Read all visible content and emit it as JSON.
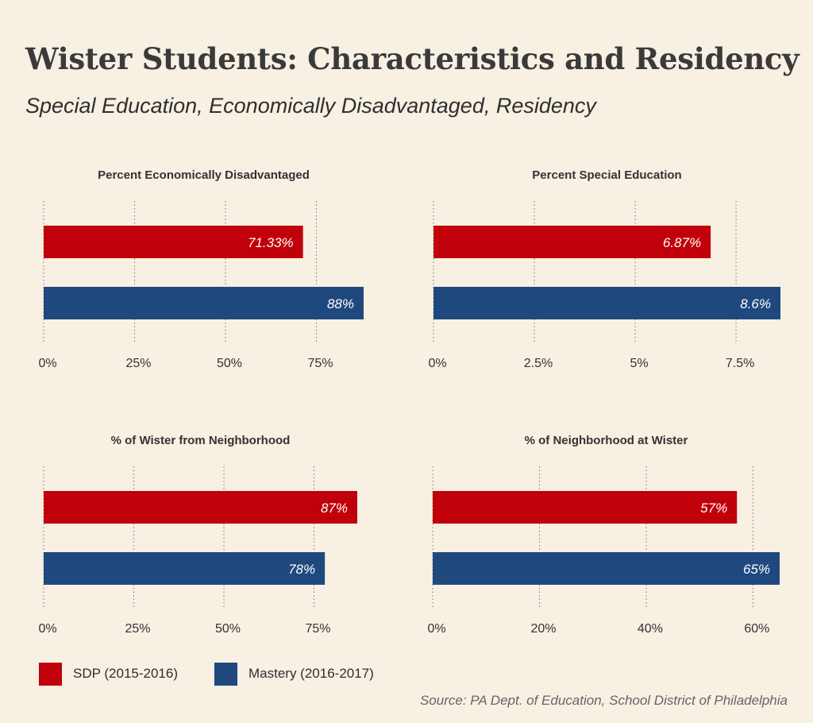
{
  "title": "Wister Students: Characteristics and Residency",
  "subtitle": "Special Education, Economically Disadvantaged, Residency",
  "source": "Source: PA Dept. of Education, School District of Philadelphia",
  "colors": {
    "sdp": "#c0000a",
    "mastery": "#1f487e",
    "background": "#f7f0e3"
  },
  "legend": [
    {
      "label": "SDP (2015-2016)",
      "color": "#c0000a"
    },
    {
      "label": "Mastery (2016-2017)",
      "color": "#1f487e"
    }
  ],
  "chart_data": [
    {
      "type": "bar",
      "orientation": "horizontal",
      "title": "Percent Economically Disadvantaged",
      "categories": [
        "SDP (2015-2016)",
        "Mastery (2016-2017)"
      ],
      "values": [
        71.33,
        88
      ],
      "value_labels": [
        "71.33%",
        "88%"
      ],
      "xlim": [
        0,
        88
      ],
      "ticks": [
        0,
        25,
        50,
        75
      ],
      "tick_labels": [
        "0%",
        "25%",
        "50%",
        "75%"
      ],
      "grid": true
    },
    {
      "type": "bar",
      "orientation": "horizontal",
      "title": "Percent Special Education",
      "categories": [
        "SDP (2015-2016)",
        "Mastery (2016-2017)"
      ],
      "values": [
        6.87,
        8.6
      ],
      "value_labels": [
        "6.87%",
        "8.6%"
      ],
      "xlim": [
        0,
        8.6
      ],
      "ticks": [
        0,
        2.5,
        5,
        7.5
      ],
      "tick_labels": [
        "0%",
        "2.5%",
        "5%",
        "7.5%"
      ],
      "grid": true
    },
    {
      "type": "bar",
      "orientation": "horizontal",
      "title": "% of Wister from Neighborhood",
      "categories": [
        "SDP (2015-2016)",
        "Mastery (2016-2017)"
      ],
      "values": [
        87,
        78
      ],
      "value_labels": [
        "87%",
        "78%"
      ],
      "xlim": [
        0,
        87
      ],
      "ticks": [
        0,
        25,
        50,
        75
      ],
      "tick_labels": [
        "0%",
        "25%",
        "50%",
        "75%"
      ],
      "grid": true
    },
    {
      "type": "bar",
      "orientation": "horizontal",
      "title": "% of Neighborhood at Wister",
      "categories": [
        "SDP (2015-2016)",
        "Mastery (2016-2017)"
      ],
      "values": [
        57,
        65
      ],
      "value_labels": [
        "57%",
        "65%"
      ],
      "xlim": [
        0,
        65
      ],
      "ticks": [
        0,
        20,
        40,
        60
      ],
      "tick_labels": [
        "0%",
        "20%",
        "40%",
        "60%"
      ],
      "grid": true
    }
  ]
}
